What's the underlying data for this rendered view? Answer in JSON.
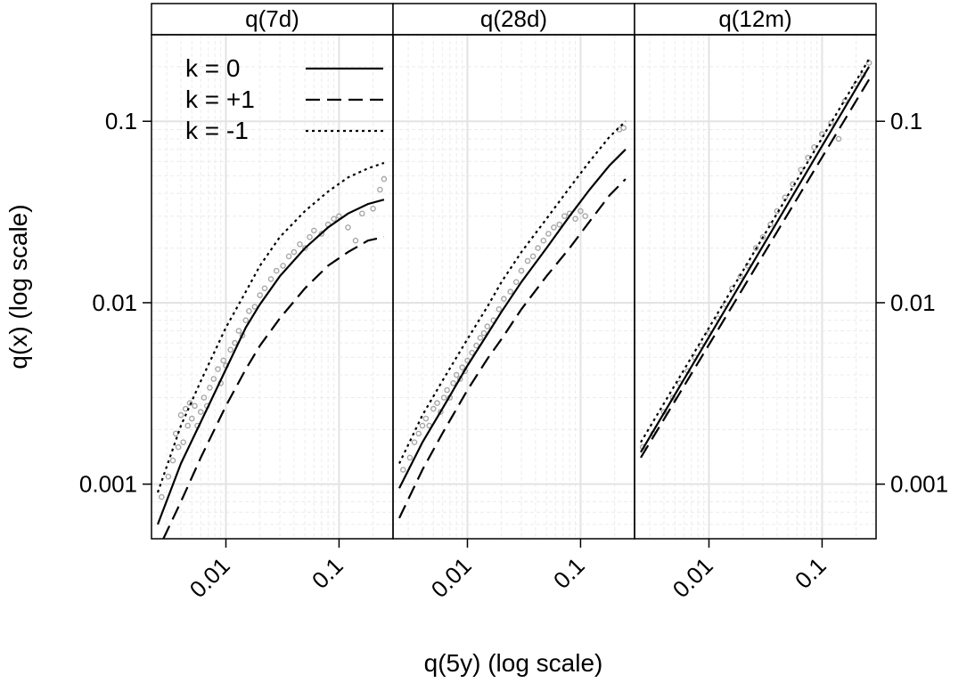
{
  "chart_data": {
    "type": "scatter",
    "layout": "three panels side by side with shared axes (lattice)",
    "xlabel": "q(5y) (log scale)",
    "ylabel": "q(x) (log scale)",
    "x_scale": "log",
    "y_scale": "log",
    "xlim": [
      0.0022,
      0.3
    ],
    "ylim": [
      0.0005,
      0.3
    ],
    "x_ticks": [
      0.01,
      0.1
    ],
    "x_tick_labels": [
      "0.01",
      "0.1"
    ],
    "y_ticks": [
      0.001,
      0.01,
      0.1
    ],
    "y_tick_labels": [
      "0.001",
      "0.01",
      "0.1"
    ],
    "y_axis_left_panel": "first panel",
    "y_axis_right_panel": "last panel",
    "grid": true,
    "legend_position": "top-left of first panel",
    "legend": [
      {
        "label": "k = 0",
        "line": "solid"
      },
      {
        "label": "k = +1",
        "line": "dashed"
      },
      {
        "label": "k = -1",
        "line": "dotted"
      }
    ],
    "points_color": "#a8a8a8",
    "curves_color": "#000000",
    "panels": [
      {
        "title": "q(7d)",
        "curves": {
          "k = 0": {
            "x": [
              0.0025,
              0.004,
              0.006,
              0.01,
              0.015,
              0.02,
              0.03,
              0.05,
              0.08,
              0.12,
              0.18,
              0.25
            ],
            "y": [
              0.0006,
              0.0013,
              0.0022,
              0.0043,
              0.0073,
              0.0098,
              0.014,
              0.02,
              0.026,
              0.031,
              0.035,
              0.037
            ]
          },
          "k = +1": {
            "x": [
              0.0028,
              0.004,
              0.006,
              0.01,
              0.015,
              0.02,
              0.03,
              0.05,
              0.08,
              0.12,
              0.18,
              0.25
            ],
            "y": [
              0.0005,
              0.0008,
              0.0014,
              0.0027,
              0.0043,
              0.0058,
              0.0082,
              0.012,
              0.016,
              0.019,
              0.022,
              0.023
            ]
          },
          "k = -1": {
            "x": [
              0.0025,
              0.004,
              0.006,
              0.01,
              0.015,
              0.02,
              0.03,
              0.05,
              0.08,
              0.12,
              0.18,
              0.25
            ],
            "y": [
              0.0009,
              0.0021,
              0.0037,
              0.0073,
              0.0115,
              0.016,
              0.023,
              0.032,
              0.041,
              0.049,
              0.055,
              0.059
            ]
          }
        },
        "points": [
          [
            0.0027,
            0.00085
          ],
          [
            0.0031,
            0.0011
          ],
          [
            0.0034,
            0.00135
          ],
          [
            0.0036,
            0.0019
          ],
          [
            0.0038,
            0.0016
          ],
          [
            0.004,
            0.0024
          ],
          [
            0.0042,
            0.0017
          ],
          [
            0.0044,
            0.0026
          ],
          [
            0.0046,
            0.0021
          ],
          [
            0.0048,
            0.0028
          ],
          [
            0.005,
            0.0023
          ],
          [
            0.0053,
            0.0027
          ],
          [
            0.0056,
            0.0021
          ],
          [
            0.006,
            0.0025
          ],
          [
            0.0064,
            0.003
          ],
          [
            0.0068,
            0.0027
          ],
          [
            0.0072,
            0.0034
          ],
          [
            0.0078,
            0.0038
          ],
          [
            0.0085,
            0.0043
          ],
          [
            0.009,
            0.0036
          ],
          [
            0.0095,
            0.0048
          ],
          [
            0.01,
            0.0045
          ],
          [
            0.011,
            0.0055
          ],
          [
            0.012,
            0.006
          ],
          [
            0.013,
            0.007
          ],
          [
            0.014,
            0.0066
          ],
          [
            0.015,
            0.008
          ],
          [
            0.016,
            0.009
          ],
          [
            0.018,
            0.0095
          ],
          [
            0.02,
            0.011
          ],
          [
            0.022,
            0.012
          ],
          [
            0.025,
            0.0135
          ],
          [
            0.028,
            0.015
          ],
          [
            0.032,
            0.016
          ],
          [
            0.036,
            0.018
          ],
          [
            0.04,
            0.019
          ],
          [
            0.045,
            0.021
          ],
          [
            0.05,
            0.02
          ],
          [
            0.055,
            0.023
          ],
          [
            0.06,
            0.025
          ],
          [
            0.07,
            0.024
          ],
          [
            0.08,
            0.027
          ],
          [
            0.09,
            0.029
          ],
          [
            0.1,
            0.03
          ],
          [
            0.12,
            0.026
          ],
          [
            0.14,
            0.022
          ],
          [
            0.16,
            0.031
          ],
          [
            0.2,
            0.033
          ],
          [
            0.23,
            0.042
          ],
          [
            0.25,
            0.048
          ]
        ]
      },
      {
        "title": "q(28d)",
        "curves": {
          "k = 0": {
            "x": [
              0.0025,
              0.004,
              0.006,
              0.01,
              0.015,
              0.02,
              0.03,
              0.05,
              0.08,
              0.12,
              0.18,
              0.25
            ],
            "y": [
              0.00095,
              0.0017,
              0.0026,
              0.0045,
              0.0067,
              0.0089,
              0.013,
              0.02,
              0.03,
              0.042,
              0.057,
              0.07
            ]
          },
          "k = +1": {
            "x": [
              0.0025,
              0.004,
              0.006,
              0.01,
              0.015,
              0.02,
              0.03,
              0.05,
              0.08,
              0.12,
              0.18,
              0.25
            ],
            "y": [
              0.00065,
              0.0012,
              0.0019,
              0.0033,
              0.0049,
              0.0063,
              0.0092,
              0.014,
              0.02,
              0.028,
              0.039,
              0.048
            ]
          },
          "k = -1": {
            "x": [
              0.0025,
              0.004,
              0.006,
              0.01,
              0.015,
              0.02,
              0.03,
              0.05,
              0.08,
              0.12,
              0.18,
              0.25
            ],
            "y": [
              0.0013,
              0.0024,
              0.0037,
              0.0063,
              0.0095,
              0.013,
              0.019,
              0.029,
              0.043,
              0.06,
              0.082,
              0.1
            ]
          }
        },
        "points": [
          [
            0.0027,
            0.0012
          ],
          [
            0.0031,
            0.0014
          ],
          [
            0.0034,
            0.0017
          ],
          [
            0.0037,
            0.0019
          ],
          [
            0.004,
            0.0021
          ],
          [
            0.0043,
            0.0023
          ],
          [
            0.0046,
            0.0021
          ],
          [
            0.005,
            0.0026
          ],
          [
            0.0054,
            0.0028
          ],
          [
            0.0058,
            0.0025
          ],
          [
            0.0062,
            0.003
          ],
          [
            0.0066,
            0.0033
          ],
          [
            0.007,
            0.003
          ],
          [
            0.0075,
            0.0036
          ],
          [
            0.008,
            0.004
          ],
          [
            0.0086,
            0.0038
          ],
          [
            0.009,
            0.0044
          ],
          [
            0.0095,
            0.0042
          ],
          [
            0.01,
            0.0048
          ],
          [
            0.011,
            0.0053
          ],
          [
            0.012,
            0.0058
          ],
          [
            0.013,
            0.0064
          ],
          [
            0.014,
            0.0068
          ],
          [
            0.015,
            0.0074
          ],
          [
            0.017,
            0.008
          ],
          [
            0.019,
            0.0092
          ],
          [
            0.021,
            0.0105
          ],
          [
            0.024,
            0.0115
          ],
          [
            0.027,
            0.013
          ],
          [
            0.03,
            0.015
          ],
          [
            0.034,
            0.017
          ],
          [
            0.038,
            0.018
          ],
          [
            0.042,
            0.02
          ],
          [
            0.047,
            0.022
          ],
          [
            0.052,
            0.024
          ],
          [
            0.058,
            0.026
          ],
          [
            0.065,
            0.027
          ],
          [
            0.072,
            0.03
          ],
          [
            0.08,
            0.031
          ],
          [
            0.09,
            0.029
          ],
          [
            0.1,
            0.032
          ],
          [
            0.11,
            0.03
          ],
          [
            0.22,
            0.09
          ],
          [
            0.24,
            0.092
          ]
        ]
      },
      {
        "title": "q(12m)",
        "curves": {
          "k = 0": {
            "x": [
              0.0025,
              0.26
            ],
            "y": [
              0.0015,
              0.2
            ]
          },
          "k = +1": {
            "x": [
              0.0025,
              0.26
            ],
            "y": [
              0.0014,
              0.17
            ]
          },
          "k = -1": {
            "x": [
              0.0025,
              0.26
            ],
            "y": [
              0.0017,
              0.22
            ]
          }
        },
        "points": [
          [
            0.0026,
            0.0016
          ],
          [
            0.0032,
            0.0019
          ],
          [
            0.004,
            0.0025
          ],
          [
            0.0048,
            0.003
          ],
          [
            0.0055,
            0.0036
          ],
          [
            0.0065,
            0.0042
          ],
          [
            0.0075,
            0.005
          ],
          [
            0.0085,
            0.0058
          ],
          [
            0.01,
            0.0068
          ],
          [
            0.012,
            0.0082
          ],
          [
            0.014,
            0.0098
          ],
          [
            0.016,
            0.012
          ],
          [
            0.019,
            0.014
          ],
          [
            0.022,
            0.016
          ],
          [
            0.026,
            0.02
          ],
          [
            0.03,
            0.023
          ],
          [
            0.035,
            0.027
          ],
          [
            0.04,
            0.032
          ],
          [
            0.047,
            0.038
          ],
          [
            0.055,
            0.045
          ],
          [
            0.065,
            0.054
          ],
          [
            0.075,
            0.063
          ],
          [
            0.085,
            0.072
          ],
          [
            0.1,
            0.085
          ],
          [
            0.12,
            0.098
          ],
          [
            0.14,
            0.08
          ],
          [
            0.16,
            0.13
          ],
          [
            0.2,
            0.16
          ],
          [
            0.23,
            0.18
          ],
          [
            0.26,
            0.21
          ]
        ]
      }
    ]
  }
}
